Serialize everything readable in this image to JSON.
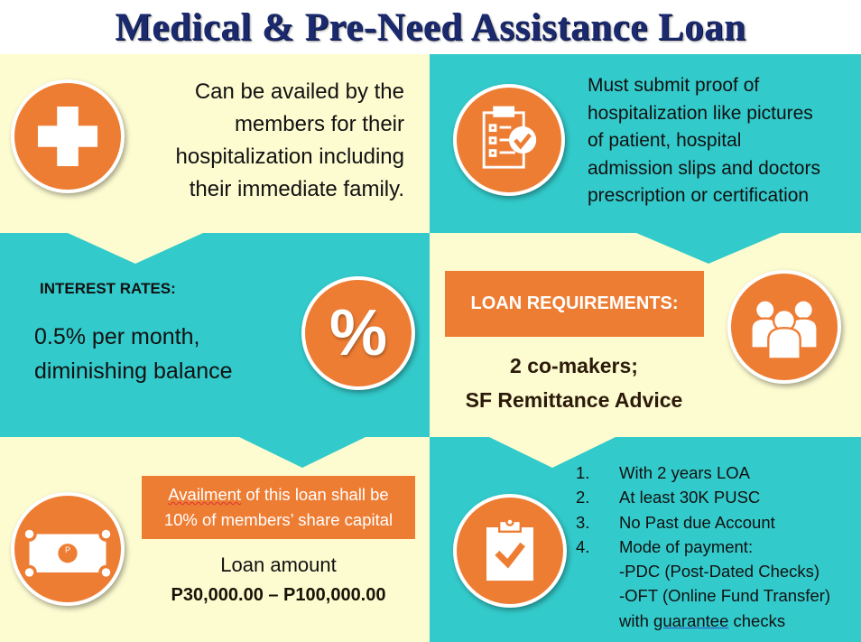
{
  "title": "Medical & Pre-Need Assistance  Loan",
  "colors": {
    "title": "#1b2a6e",
    "cream": "#fdfbd0",
    "teal": "#33cacb",
    "orange": "#ee7d34"
  },
  "eligibility": {
    "icon": "medical-cross-icon",
    "lines": [
      "Can be availed by the",
      "members for their",
      "hospitalization including",
      "their immediate family."
    ]
  },
  "proof": {
    "icon": "checklist-icon",
    "lines": [
      "Must submit proof of",
      "hospitalization like pictures",
      "of patient, hospital",
      "admission slips and doctors",
      "prescription or certification"
    ]
  },
  "interest": {
    "heading": "INTEREST RATES:",
    "lines": [
      "0.5% per month,",
      "diminishing balance"
    ],
    "icon": "percent-icon",
    "icon_text": "%"
  },
  "requirements": {
    "heading": "LOAN REQUIREMENTS:",
    "lines": [
      "2 co-makers;",
      "SF Remittance Advice"
    ],
    "icon": "people-group-icon"
  },
  "amount": {
    "icon": "money-bill-icon",
    "bill_symbol": "P",
    "availment_word": "Availment",
    "availment_rest": " of this loan shall be",
    "availment_line2": "10% of members’ share capital",
    "label": "Loan amount",
    "range": "P30,000.00 – P100,000.00"
  },
  "conditions": {
    "icon": "clipboard-check-icon",
    "items": [
      {
        "num": "1.",
        "text": "With 2 years LOA"
      },
      {
        "num": "2.",
        "text": "At least 30K PUSC"
      },
      {
        "num": "3.",
        "text": "No Past due Account"
      },
      {
        "num": "4.",
        "text": "Mode of payment:"
      }
    ],
    "sub": [
      "-PDC (Post-Dated Checks)",
      "-OFT (Online Fund Transfer)"
    ],
    "last_prefix": "with ",
    "last_word": "guarantee",
    "last_suffix": " checks"
  }
}
